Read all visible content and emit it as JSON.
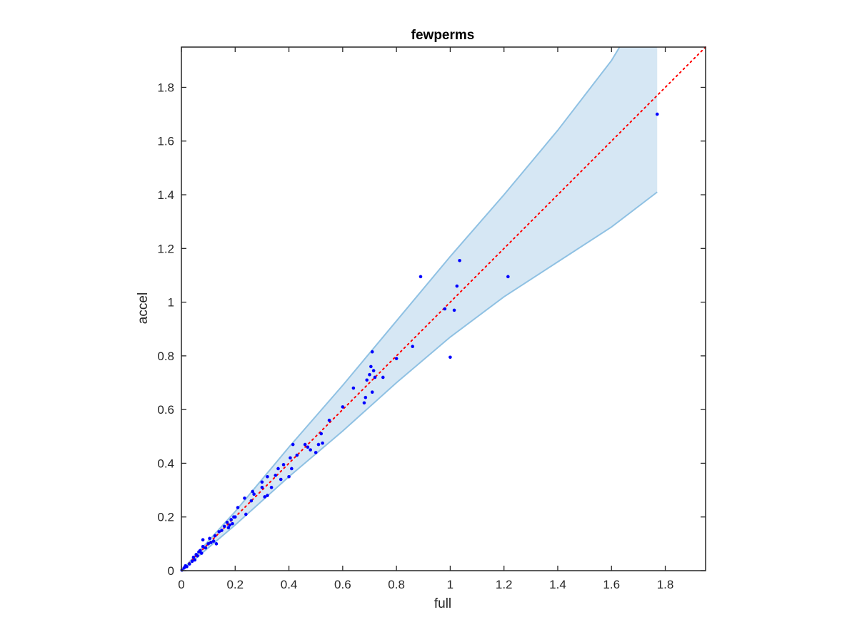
{
  "chart_data": {
    "type": "scatter",
    "title": "fewperms",
    "xlabel": "full",
    "ylabel": "accel",
    "xlim": [
      0,
      1.95
    ],
    "ylim": [
      0,
      1.95
    ],
    "xticks": [
      "0",
      "0.2",
      "0.4",
      "0.6",
      "0.8",
      "1",
      "1.2",
      "1.4",
      "1.6",
      "1.8"
    ],
    "yticks": [
      "0",
      "0.2",
      "0.4",
      "0.6",
      "0.8",
      "1",
      "1.2",
      "1.4",
      "1.6",
      "1.8"
    ],
    "grid": false,
    "reference_line": {
      "style": "dotted",
      "color": "#ff0000",
      "from": [
        0,
        0
      ],
      "to": [
        1.95,
        1.95
      ]
    },
    "band": {
      "color": "#d6e7f4",
      "edge_color": "#8fc1e3",
      "upper": [
        [
          0,
          0
        ],
        [
          0.2,
          0.22
        ],
        [
          0.4,
          0.46
        ],
        [
          0.6,
          0.69
        ],
        [
          0.8,
          0.93
        ],
        [
          1.0,
          1.17
        ],
        [
          1.2,
          1.4
        ],
        [
          1.4,
          1.64
        ],
        [
          1.6,
          1.9
        ],
        [
          1.63,
          1.95
        ],
        [
          1.77,
          1.95
        ]
      ],
      "lower": [
        [
          0,
          0
        ],
        [
          0.2,
          0.17
        ],
        [
          0.4,
          0.35
        ],
        [
          0.6,
          0.52
        ],
        [
          0.8,
          0.7
        ],
        [
          1.0,
          0.87
        ],
        [
          1.2,
          1.02
        ],
        [
          1.4,
          1.15
        ],
        [
          1.6,
          1.28
        ],
        [
          1.77,
          1.41
        ]
      ]
    },
    "series": [
      {
        "color": "#0000ff",
        "points": [
          [
            0.002,
            0.002
          ],
          [
            0.01,
            0.01
          ],
          [
            0.015,
            0.018
          ],
          [
            0.02,
            0.015
          ],
          [
            0.03,
            0.025
          ],
          [
            0.04,
            0.035
          ],
          [
            0.045,
            0.05
          ],
          [
            0.05,
            0.04
          ],
          [
            0.055,
            0.06
          ],
          [
            0.06,
            0.055
          ],
          [
            0.065,
            0.07
          ],
          [
            0.07,
            0.075
          ],
          [
            0.075,
            0.065
          ],
          [
            0.08,
            0.09
          ],
          [
            0.08,
            0.115
          ],
          [
            0.09,
            0.085
          ],
          [
            0.1,
            0.1
          ],
          [
            0.105,
            0.12
          ],
          [
            0.11,
            0.105
          ],
          [
            0.12,
            0.11
          ],
          [
            0.125,
            0.13
          ],
          [
            0.13,
            0.1
          ],
          [
            0.14,
            0.145
          ],
          [
            0.15,
            0.15
          ],
          [
            0.16,
            0.165
          ],
          [
            0.17,
            0.18
          ],
          [
            0.175,
            0.16
          ],
          [
            0.18,
            0.17
          ],
          [
            0.185,
            0.19
          ],
          [
            0.19,
            0.175
          ],
          [
            0.195,
            0.2
          ],
          [
            0.2,
            0.2
          ],
          [
            0.21,
            0.235
          ],
          [
            0.235,
            0.27
          ],
          [
            0.24,
            0.21
          ],
          [
            0.26,
            0.26
          ],
          [
            0.265,
            0.295
          ],
          [
            0.27,
            0.285
          ],
          [
            0.3,
            0.31
          ],
          [
            0.3,
            0.33
          ],
          [
            0.31,
            0.275
          ],
          [
            0.32,
            0.35
          ],
          [
            0.32,
            0.28
          ],
          [
            0.335,
            0.31
          ],
          [
            0.35,
            0.355
          ],
          [
            0.36,
            0.38
          ],
          [
            0.37,
            0.34
          ],
          [
            0.38,
            0.395
          ],
          [
            0.4,
            0.35
          ],
          [
            0.405,
            0.42
          ],
          [
            0.41,
            0.38
          ],
          [
            0.415,
            0.47
          ],
          [
            0.43,
            0.43
          ],
          [
            0.46,
            0.47
          ],
          [
            0.47,
            0.46
          ],
          [
            0.48,
            0.45
          ],
          [
            0.5,
            0.44
          ],
          [
            0.51,
            0.47
          ],
          [
            0.52,
            0.51
          ],
          [
            0.525,
            0.475
          ],
          [
            0.55,
            0.56
          ],
          [
            0.6,
            0.61
          ],
          [
            0.64,
            0.68
          ],
          [
            0.68,
            0.625
          ],
          [
            0.685,
            0.645
          ],
          [
            0.69,
            0.71
          ],
          [
            0.7,
            0.73
          ],
          [
            0.705,
            0.76
          ],
          [
            0.71,
            0.665
          ],
          [
            0.71,
            0.815
          ],
          [
            0.715,
            0.745
          ],
          [
            0.72,
            0.72
          ],
          [
            0.75,
            0.72
          ],
          [
            0.8,
            0.79
          ],
          [
            0.86,
            0.835
          ],
          [
            0.89,
            1.095
          ],
          [
            0.98,
            0.975
          ],
          [
            1.0,
            0.795
          ],
          [
            1.015,
            0.97
          ],
          [
            1.025,
            1.06
          ],
          [
            1.035,
            1.155
          ],
          [
            1.215,
            1.095
          ],
          [
            1.77,
            1.7
          ]
        ]
      }
    ]
  }
}
